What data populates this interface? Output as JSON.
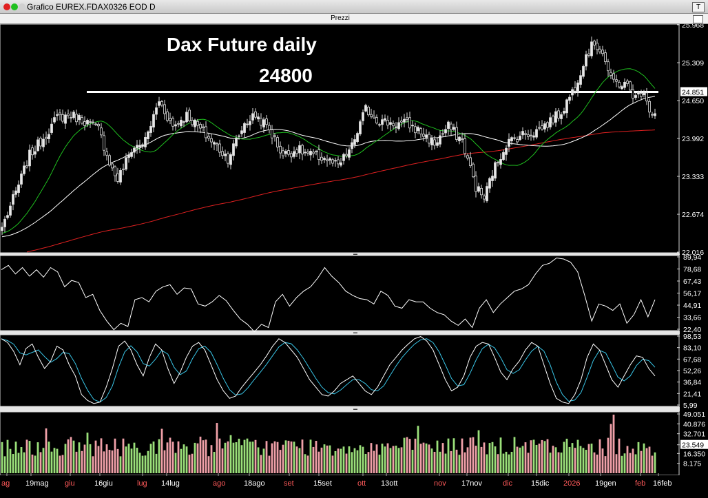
{
  "window": {
    "title": "Grafico EUREX.FDAX0326 EOD D",
    "corner_button": "T",
    "traffic_colors": [
      "#e02020",
      "#20c020",
      "#d0d0d0"
    ]
  },
  "panel_header": "Prezzi",
  "chart_data": [
    {
      "type": "line",
      "name": "price",
      "title": "Dax Future daily",
      "annotation": "24800",
      "hline": 24800,
      "ylim": [
        22016,
        25968
      ],
      "y_ticks": [
        "25.968",
        "25.309",
        "24.650",
        "23.992",
        "23.333",
        "22.674",
        "22.016"
      ],
      "last_price_label": "24.851",
      "ma_colors": {
        "fast": "#1fbf1f",
        "mid": "#ffffff",
        "slow": "#e02020"
      },
      "x": [
        "19mag",
        "giu",
        "16giu",
        "lug",
        "14lug",
        "ago",
        "18ago",
        "set",
        "15set",
        "ott",
        "13ott",
        "nov",
        "17nov",
        "dic",
        "15dic",
        "2026",
        "19gen",
        "feb",
        "16feb"
      ],
      "close_anchors": [
        {
          "i": 0,
          "v": 22450
        },
        {
          "i": 5,
          "v": 23050
        },
        {
          "i": 10,
          "v": 23700
        },
        {
          "i": 15,
          "v": 24000
        },
        {
          "i": 20,
          "v": 24350
        },
        {
          "i": 25,
          "v": 24400
        },
        {
          "i": 30,
          "v": 24300
        },
        {
          "i": 35,
          "v": 24150
        },
        {
          "i": 40,
          "v": 23450
        },
        {
          "i": 42,
          "v": 23280
        },
        {
          "i": 47,
          "v": 23800
        },
        {
          "i": 52,
          "v": 23950
        },
        {
          "i": 57,
          "v": 24650
        },
        {
          "i": 62,
          "v": 24200
        },
        {
          "i": 67,
          "v": 24400
        },
        {
          "i": 72,
          "v": 24150
        },
        {
          "i": 77,
          "v": 23900
        },
        {
          "i": 82,
          "v": 23650
        },
        {
          "i": 88,
          "v": 24250
        },
        {
          "i": 92,
          "v": 24400
        },
        {
          "i": 97,
          "v": 24150
        },
        {
          "i": 102,
          "v": 23700
        },
        {
          "i": 107,
          "v": 23800
        },
        {
          "i": 112,
          "v": 23700
        },
        {
          "i": 117,
          "v": 23650
        },
        {
          "i": 122,
          "v": 23500
        },
        {
          "i": 127,
          "v": 23850
        },
        {
          "i": 132,
          "v": 24500
        },
        {
          "i": 137,
          "v": 24300
        },
        {
          "i": 142,
          "v": 24250
        },
        {
          "i": 147,
          "v": 24250
        },
        {
          "i": 152,
          "v": 24100
        },
        {
          "i": 157,
          "v": 23900
        },
        {
          "i": 162,
          "v": 24200
        },
        {
          "i": 167,
          "v": 23950
        },
        {
          "i": 172,
          "v": 23150
        },
        {
          "i": 175,
          "v": 22950
        },
        {
          "i": 178,
          "v": 23400
        },
        {
          "i": 183,
          "v": 23900
        },
        {
          "i": 188,
          "v": 24050
        },
        {
          "i": 193,
          "v": 24100
        },
        {
          "i": 198,
          "v": 24250
        },
        {
          "i": 203,
          "v": 24450
        },
        {
          "i": 208,
          "v": 24900
        },
        {
          "i": 212,
          "v": 25450
        },
        {
          "i": 215,
          "v": 25650
        },
        {
          "i": 218,
          "v": 25500
        },
        {
          "i": 221,
          "v": 25000
        },
        {
          "i": 224,
          "v": 24950
        },
        {
          "i": 227,
          "v": 24900
        },
        {
          "i": 230,
          "v": 24700
        },
        {
          "i": 233,
          "v": 24850
        },
        {
          "i": 235,
          "v": 24500
        },
        {
          "i": 237,
          "v": 24400
        }
      ]
    },
    {
      "type": "line",
      "name": "oscillator-1",
      "ylim": [
        22.4,
        89.94
      ],
      "y_ticks": [
        "89,94",
        "78,68",
        "67,43",
        "56,17",
        "44,91",
        "33,66",
        "22,40"
      ],
      "values": [
        78,
        82,
        74,
        80,
        72,
        78,
        71,
        80,
        76,
        62,
        68,
        66,
        52,
        55,
        40,
        30,
        22,
        28,
        25,
        50,
        52,
        48,
        58,
        62,
        64,
        55,
        61,
        60,
        46,
        44,
        48,
        54,
        49,
        40,
        32,
        27,
        20,
        27,
        24,
        48,
        55,
        44,
        52,
        58,
        62,
        70,
        80,
        72,
        66,
        58,
        54,
        51,
        50,
        46,
        58,
        54,
        44,
        42,
        50,
        48,
        48,
        42,
        38,
        36,
        30,
        26,
        32,
        24,
        42,
        50,
        38,
        46,
        52,
        58,
        60,
        64,
        74,
        82,
        84,
        89,
        88,
        85,
        76,
        54,
        30,
        46,
        44,
        40,
        46,
        28,
        36,
        50,
        34,
        50
      ]
    },
    {
      "type": "line",
      "name": "stochastic",
      "ylim": [
        5.99,
        98.53
      ],
      "y_ticks": [
        "98,53",
        "83,10",
        "67,68",
        "52,26",
        "36,84",
        "21,41",
        "5,99"
      ],
      "k_color": "#ffffff",
      "d_color": "#39c6e8",
      "values": [
        95,
        90,
        78,
        60,
        82,
        88,
        70,
        55,
        65,
        85,
        80,
        60,
        45,
        20,
        12,
        8,
        10,
        30,
        55,
        85,
        92,
        80,
        60,
        45,
        70,
        88,
        80,
        55,
        35,
        50,
        70,
        85,
        90,
        80,
        60,
        40,
        25,
        15,
        18,
        30,
        40,
        50,
        60,
        72,
        85,
        95,
        90,
        80,
        70,
        55,
        40,
        30,
        20,
        18,
        25,
        35,
        40,
        45,
        35,
        25,
        20,
        30,
        45,
        60,
        70,
        80,
        88,
        95,
        98,
        92,
        80,
        60,
        40,
        25,
        30,
        45,
        70,
        85,
        90,
        88,
        70,
        50,
        40,
        55,
        65,
        80,
        90,
        85,
        60,
        35,
        15,
        10,
        8,
        20,
        40,
        70,
        88,
        80,
        60,
        40,
        30,
        45,
        60,
        72,
        70,
        55,
        45
      ]
    },
    {
      "type": "bar",
      "name": "volume",
      "ylim": [
        0,
        49051
      ],
      "y_ticks": [
        "49.051",
        "40.876",
        "32.701",
        "23.549",
        "16.350",
        "8.175"
      ],
      "highlight_label": "23.549",
      "up_color": "#9be07a",
      "down_color": "#f0a0a8"
    }
  ],
  "x_axis_labels": [
    "ag",
    "19mag",
    "giu",
    "16giu",
    "lug",
    "14lug",
    "ago",
    "18ago",
    "set",
    "15set",
    "ott",
    "13ott",
    "nov",
    "17nov",
    "dic",
    "15dic",
    "2026",
    "19gen",
    "feb",
    "16feb"
  ],
  "x_axis_red": [
    "ag",
    "giu",
    "lug",
    "ago",
    "set",
    "ott",
    "nov",
    "dic",
    "2026",
    "feb"
  ]
}
